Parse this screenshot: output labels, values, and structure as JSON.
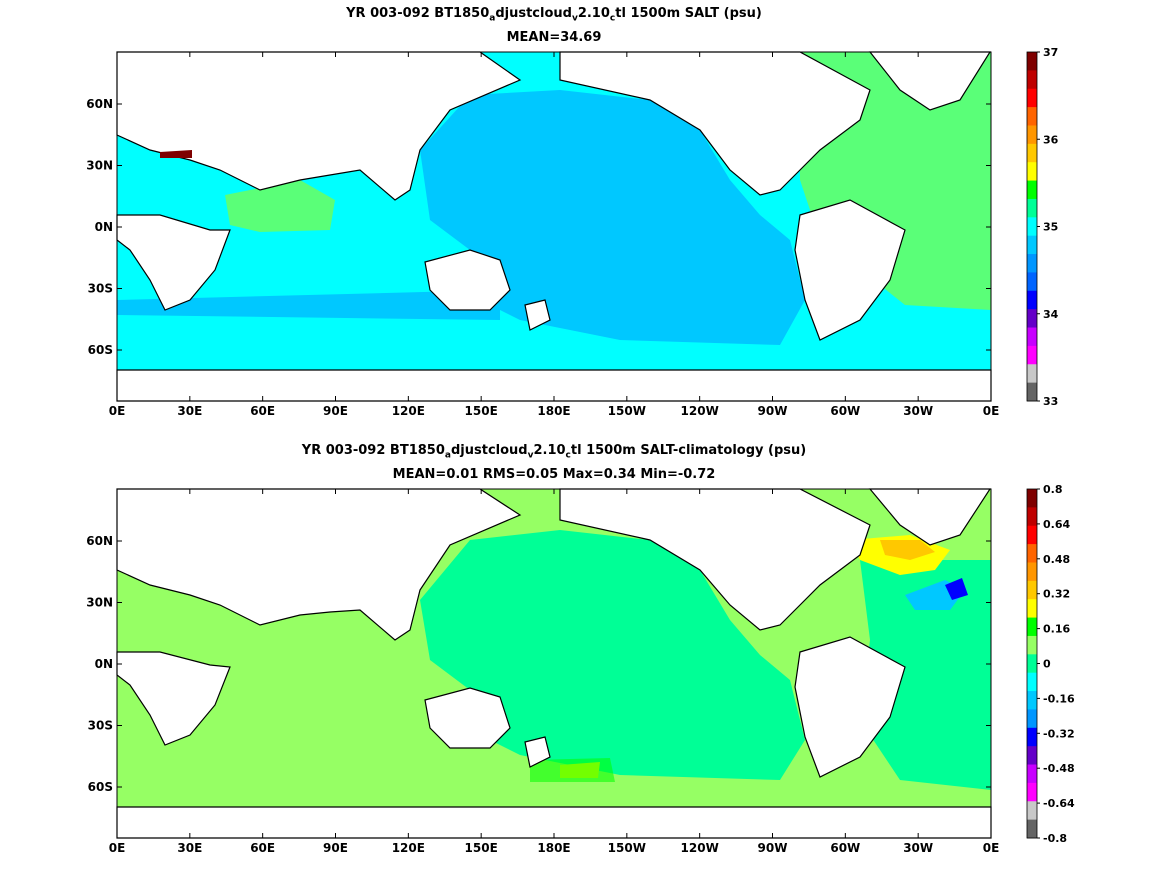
{
  "panels": [
    {
      "title": {
        "pre1": "YR 003-092 BT1850",
        "sub1": "a",
        "mid1": "djustcloud",
        "sub2": "v",
        "mid2": "2.10",
        "sub3": "c",
        "post": "tl 1500m SALT (psu)"
      },
      "subtitle": "MEAN=34.69",
      "lat_ticks": [
        "60N",
        "30N",
        "0N",
        "30S",
        "60S"
      ],
      "lon_ticks": [
        "0E",
        "30E",
        "60E",
        "90E",
        "120E",
        "150E",
        "180E",
        "150W",
        "120W",
        "90W",
        "60W",
        "30W",
        "0E"
      ],
      "colorbar_labels": [
        "37",
        "36",
        "35",
        "34",
        "33"
      ],
      "colorbar_colors": [
        "#7f0000",
        "#bf0000",
        "#ff0000",
        "#ff6400",
        "#ff9600",
        "#ffc800",
        "#ffff00",
        "#00ff00",
        "#00ff96",
        "#00ffff",
        "#00c8ff",
        "#0096ff",
        "#0064ff",
        "#0000ff",
        "#6400c8",
        "#c800ff",
        "#ff00ff",
        "#c8c8c8",
        "#646464"
      ]
    },
    {
      "title": {
        "pre1": "YR 003-092 BT1850",
        "sub1": "a",
        "mid1": "djustcloud",
        "sub2": "v",
        "mid2": "2.10",
        "sub3": "c",
        "post": "tl 1500m SALT-climatology (psu)"
      },
      "subtitle": "MEAN=0.01   RMS=0.05   Max=0.34   Min=-0.72",
      "lat_ticks": [
        "60N",
        "30N",
        "0N",
        "30S",
        "60S"
      ],
      "lon_ticks": [
        "0E",
        "30E",
        "60E",
        "90E",
        "120E",
        "150E",
        "180E",
        "150W",
        "120W",
        "90W",
        "60W",
        "30W",
        "0E"
      ],
      "colorbar_labels": [
        "0.8",
        "0.64",
        "0.48",
        "0.32",
        "0.16",
        "0",
        "-0.16",
        "-0.32",
        "-0.48",
        "-0.64",
        "-0.8"
      ],
      "colorbar_colors": [
        "#7f0000",
        "#bf0000",
        "#ff0000",
        "#ff6400",
        "#ff9600",
        "#ffc800",
        "#ffff00",
        "#00ff00",
        "#96ff64",
        "#00ff96",
        "#00ffff",
        "#00c8ff",
        "#0096ff",
        "#0000ff",
        "#6400c8",
        "#c800ff",
        "#ff00ff",
        "#c8c8c8",
        "#646464"
      ]
    }
  ],
  "colors": {
    "land": "#ffffff",
    "top_base": "#00ffff",
    "top_pacific": "#00c8ff",
    "top_atlantic": "#5aff78",
    "bottom_base": "#96ff64",
    "bottom_pacific": "#00ff96"
  }
}
